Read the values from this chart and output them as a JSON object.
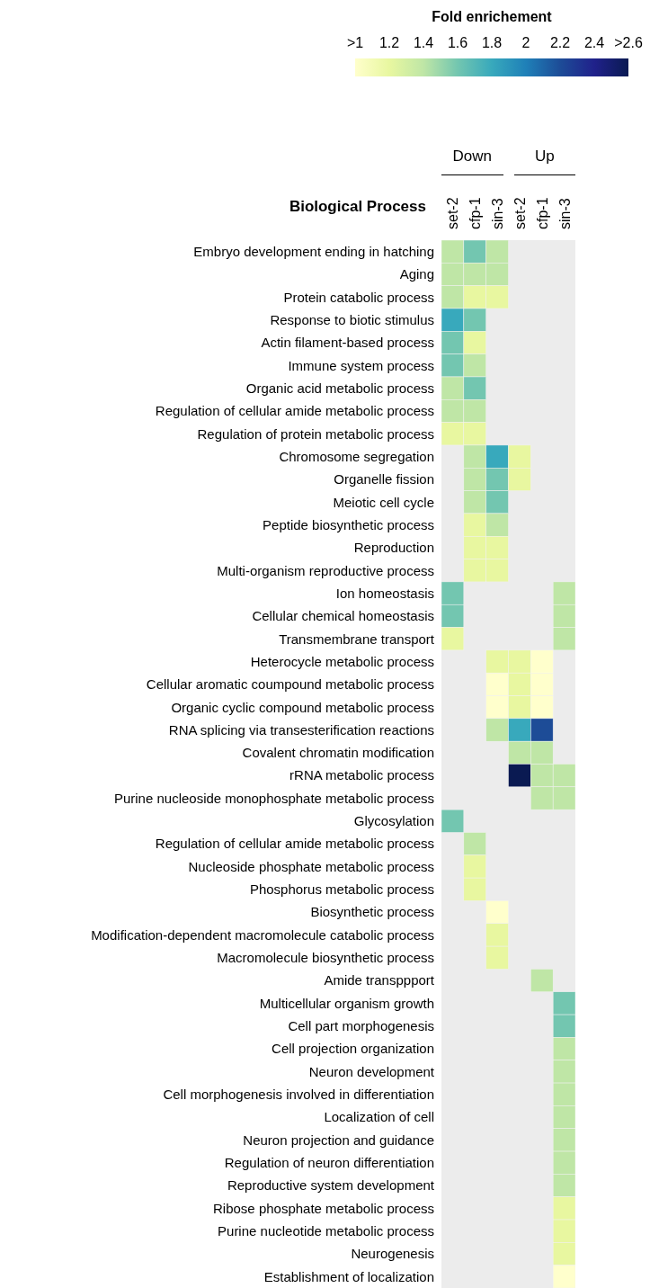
{
  "chart_data": {
    "type": "heatmap",
    "clabel": "Fold enrichement",
    "ylabel": "Biological Process",
    "annotations": [
      "Down",
      "Up"
    ],
    "categories": [
      "set-2",
      "cfp-1",
      "sin-3",
      "set-2",
      "cfp-1",
      "sin-3"
    ],
    "y_categories": [
      "Embryo development ending in hatching",
      "Aging",
      "Protein catabolic process",
      "Response to biotic stimulus",
      "Actin filament-based process",
      "Immune system process",
      "Organic acid metabolic process",
      "Regulation of cellular amide metabolic process",
      "Regulation of protein metabolic process",
      "Chromosome segregation",
      "Organelle fission",
      "Meiotic cell cycle",
      "Peptide biosynthetic process",
      "Reproduction",
      "Multi-organism reproductive process",
      "Ion homeostasis",
      "Cellular chemical homeostasis",
      "Transmembrane transport",
      "Heterocycle metabolic process",
      "Cellular aromatic coumpound metabolic process",
      "Organic cyclic compound metabolic process",
      "RNA splicing via transesterification reactions",
      "Covalent chromatin modification",
      "rRNA metabolic process",
      "Purine nucleoside monophosphate metabolic process",
      "Glycosylation",
      "Regulation of cellular amide metabolic process",
      "Nucleoside phosphate metabolic process",
      "Phosphorus metabolic process",
      "Biosynthetic process",
      "Modification-dependent macromolecule catabolic process",
      "Macromolecule biosynthetic process",
      "Amide transppport",
      "Multicellular organism growth",
      "Cell part morphogenesis",
      "Cell projection organization",
      "Neuron development",
      "Cell morphogenesis involved in differentiation",
      "Localization of cell",
      "Neuron projection and guidance",
      "Regulation of neuron differentiation",
      "Reproductive system development",
      "Ribose phosphate metabolic process",
      "Purine nucleotide metabolic process",
      "Neurogenesis",
      "Establishment of localization"
    ],
    "cells": [
      [
        1.4,
        1.6,
        1.4,
        null,
        null,
        null
      ],
      [
        1.4,
        1.4,
        1.4,
        null,
        null,
        null
      ],
      [
        1.4,
        1.2,
        1.2,
        null,
        null,
        null
      ],
      [
        1.8,
        1.6,
        null,
        null,
        null,
        null
      ],
      [
        1.6,
        1.2,
        null,
        null,
        null,
        null
      ],
      [
        1.6,
        1.4,
        null,
        null,
        null,
        null
      ],
      [
        1.4,
        1.6,
        null,
        null,
        null,
        null
      ],
      [
        1.4,
        1.4,
        null,
        null,
        null,
        null
      ],
      [
        1.2,
        1.2,
        null,
        null,
        null,
        null
      ],
      [
        null,
        1.4,
        1.8,
        1.2,
        null,
        null
      ],
      [
        null,
        1.4,
        1.6,
        1.2,
        null,
        null
      ],
      [
        null,
        1.4,
        1.6,
        null,
        null,
        null
      ],
      [
        null,
        1.2,
        1.4,
        null,
        null,
        null
      ],
      [
        null,
        1.2,
        1.2,
        null,
        null,
        null
      ],
      [
        null,
        1.2,
        1.2,
        null,
        null,
        null
      ],
      [
        1.6,
        null,
        null,
        null,
        null,
        1.4
      ],
      [
        1.6,
        null,
        null,
        null,
        null,
        1.4
      ],
      [
        1.2,
        null,
        null,
        null,
        null,
        1.4
      ],
      [
        null,
        null,
        1.2,
        1.2,
        1,
        null
      ],
      [
        null,
        null,
        1,
        1.2,
        1,
        null
      ],
      [
        null,
        null,
        1,
        1.2,
        1,
        null
      ],
      [
        null,
        null,
        1.4,
        1.8,
        2.2,
        null
      ],
      [
        null,
        null,
        null,
        1.4,
        1.4,
        null
      ],
      [
        null,
        null,
        null,
        2.6,
        1.4,
        1.4
      ],
      [
        null,
        null,
        null,
        null,
        1.4,
        1.4
      ],
      [
        1.6,
        null,
        null,
        null,
        null,
        null
      ],
      [
        null,
        1.4,
        null,
        null,
        null,
        null
      ],
      [
        null,
        1.2,
        null,
        null,
        null,
        null
      ],
      [
        null,
        1.2,
        null,
        null,
        null,
        null
      ],
      [
        null,
        null,
        1,
        null,
        null,
        null
      ],
      [
        null,
        null,
        1.2,
        null,
        null,
        null
      ],
      [
        null,
        null,
        1.2,
        null,
        null,
        null
      ],
      [
        null,
        null,
        null,
        null,
        1.4,
        null
      ],
      [
        null,
        null,
        null,
        null,
        null,
        1.6
      ],
      [
        null,
        null,
        null,
        null,
        null,
        1.6
      ],
      [
        null,
        null,
        null,
        null,
        null,
        1.4
      ],
      [
        null,
        null,
        null,
        null,
        null,
        1.4
      ],
      [
        null,
        null,
        null,
        null,
        null,
        1.4
      ],
      [
        null,
        null,
        null,
        null,
        null,
        1.4
      ],
      [
        null,
        null,
        null,
        null,
        null,
        1.4
      ],
      [
        null,
        null,
        null,
        null,
        null,
        1.4
      ],
      [
        null,
        null,
        null,
        null,
        null,
        1.4
      ],
      [
        null,
        null,
        null,
        null,
        null,
        1.2
      ],
      [
        null,
        null,
        null,
        null,
        null,
        1.2
      ],
      [
        null,
        null,
        null,
        null,
        null,
        1.2
      ],
      [
        null,
        null,
        null,
        null,
        null,
        1
      ]
    ],
    "clim": [
      1,
      2.6
    ],
    "cticks": [
      {
        "value": 1,
        "label": ">1"
      },
      1.2,
      1.4,
      1.6,
      1.8,
      2,
      2.2,
      2.4,
      {
        "value": 2.6,
        "label": ">2.6"
      }
    ],
    "colors": [
      "#ffffcc",
      "#e8f7a0",
      "#bfe6a6",
      "#73c6b0",
      "#38a9bc",
      "#1f80b8",
      "#1d4c97",
      "#20218b",
      "#0a1a52"
    ]
  }
}
